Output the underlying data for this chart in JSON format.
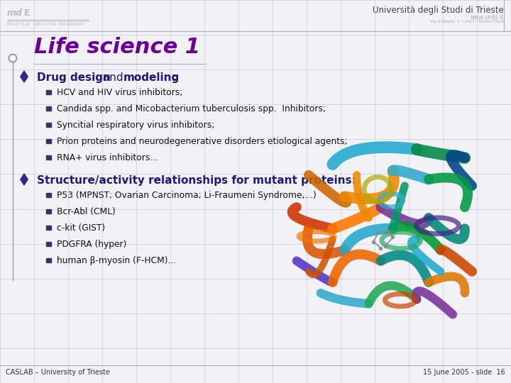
{
  "title": "Life science 1",
  "title_color": "#6B0099",
  "background_color": "#f2f2f6",
  "grid_color": "#c8c8d8",
  "bullet1_items": [
    "HCV and HIV virus inhibitors;",
    "Candida spp. and Micobacterium tuberculosis spp.  Inhibitors;",
    "Syncitial respiratory virus inhibitors;",
    "Prion proteins and neurodegenerative disorders etiological agents;",
    "RNA+ virus inhibitors..."
  ],
  "bullet2_header": "Structure/activity relationships for mutant proteins:",
  "bullet2_items": [
    "P53 (MPNST; Ovarian Carcinoma; Li-Fraumeni Syndrome,...)",
    "Bcr-Abl (CML)",
    "c-kit (GIST)",
    "PDGFRA (hyper)",
    "human β-myosin (F-HCM)..."
  ],
  "footer_left": "CASLAB – University of Trieste",
  "footer_right": "15 June 2005 - slide  16",
  "bullet_color": "#1a1a7e",
  "text_color": "#111111",
  "header_right": "Università degli Studi di Trieste"
}
